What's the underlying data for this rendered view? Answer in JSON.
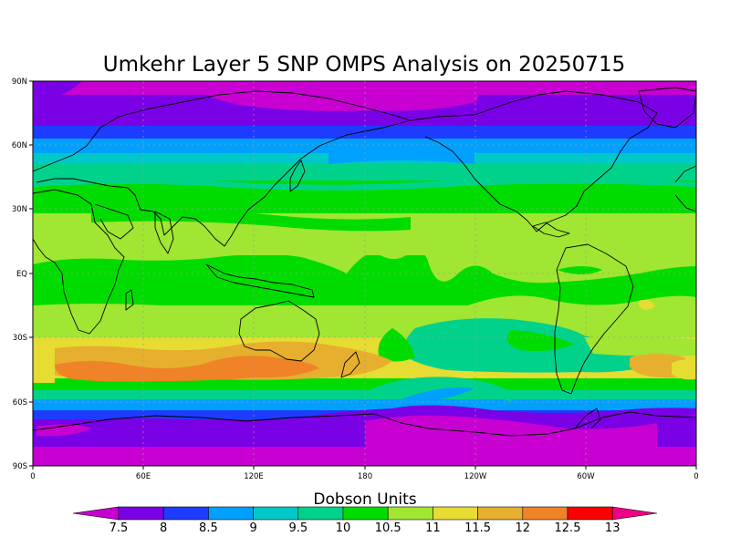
{
  "title": "Umkehr Layer 5 SNP OMPS Analysis on 20250715",
  "map": {
    "lat_ticks": [
      "90N",
      "60N",
      "30N",
      "EQ",
      "30S",
      "60S",
      "90S"
    ],
    "lon_ticks": [
      "0",
      "60E",
      "120E",
      "180",
      "120W",
      "60W",
      "0"
    ]
  },
  "colorbar": {
    "title": "Dobson Units",
    "labels": [
      "7.5",
      "8",
      "8.5",
      "9",
      "9.5",
      "10",
      "10.5",
      "11",
      "11.5",
      "12",
      "12.5",
      "13"
    ],
    "colors": [
      "#c800d2",
      "#7a00e6",
      "#1e3cff",
      "#00a0ff",
      "#00c8c8",
      "#00d28c",
      "#00dc00",
      "#a0e632",
      "#e6dc32",
      "#e6af2d",
      "#f08228",
      "#fa0000",
      "#f00082"
    ]
  }
}
